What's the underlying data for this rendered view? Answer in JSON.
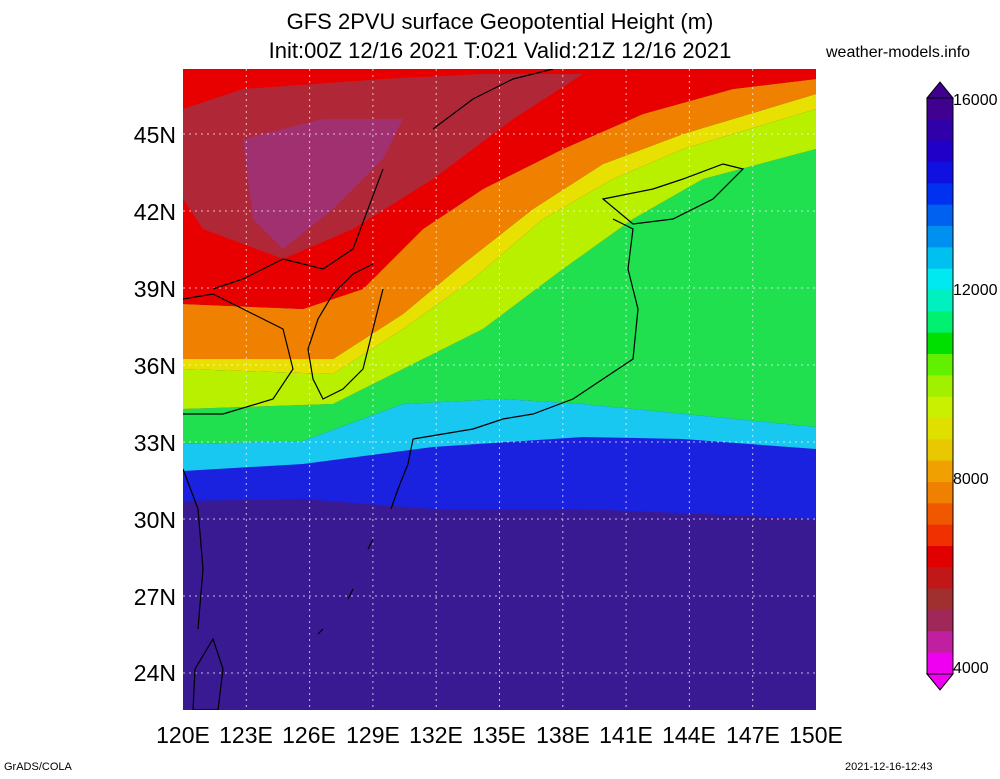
{
  "title_line1": "GFS 2PVU surface Geopotential Height (m)",
  "title_line2": "Init:00Z 12/16 2021 T:021 Valid:21Z 12/16 2021",
  "site": "weather-models.info",
  "lat_labels": [
    "45N",
    "42N",
    "39N",
    "36N",
    "33N",
    "30N",
    "27N",
    "24N"
  ],
  "lon_labels": [
    "120E",
    "123E",
    "126E",
    "129E",
    "132E",
    "135E",
    "138E",
    "141E",
    "144E",
    "147E",
    "150E"
  ],
  "colorbar": {
    "labels": [
      "16000",
      "12000",
      "8000",
      "4000"
    ],
    "min": 4000,
    "max": 16000,
    "colors": [
      "#f000f0",
      "#c020a0",
      "#a02858",
      "#a03030",
      "#c01818",
      "#e00000",
      "#f03000",
      "#f05800",
      "#f08000",
      "#f0a000",
      "#e8c800",
      "#e0e000",
      "#c8f000",
      "#a0f000",
      "#60f000",
      "#00e000",
      "#00f070",
      "#00f0c0",
      "#00e8f0",
      "#00c0f0",
      "#0090f0",
      "#0060f0",
      "#0030f0",
      "#1010e0",
      "#2000c8",
      "#3000a8",
      "#400090"
    ]
  },
  "map": {
    "lon_range": [
      120,
      150
    ],
    "lat_range": [
      22.5,
      47
    ],
    "field_colors": {
      "purple_high": "#3a1a92",
      "blue": "#1a22e0",
      "cyan": "#18c8f0",
      "green": "#20e050",
      "yellowgreen": "#b8f000",
      "yellow": "#e8e000",
      "orange": "#f08000",
      "red": "#e80000",
      "darkred": "#b02838",
      "magenta": "#a03070"
    }
  },
  "footer_left": "GrADS/COLA",
  "footer_right": "2021-12-16-12:43"
}
